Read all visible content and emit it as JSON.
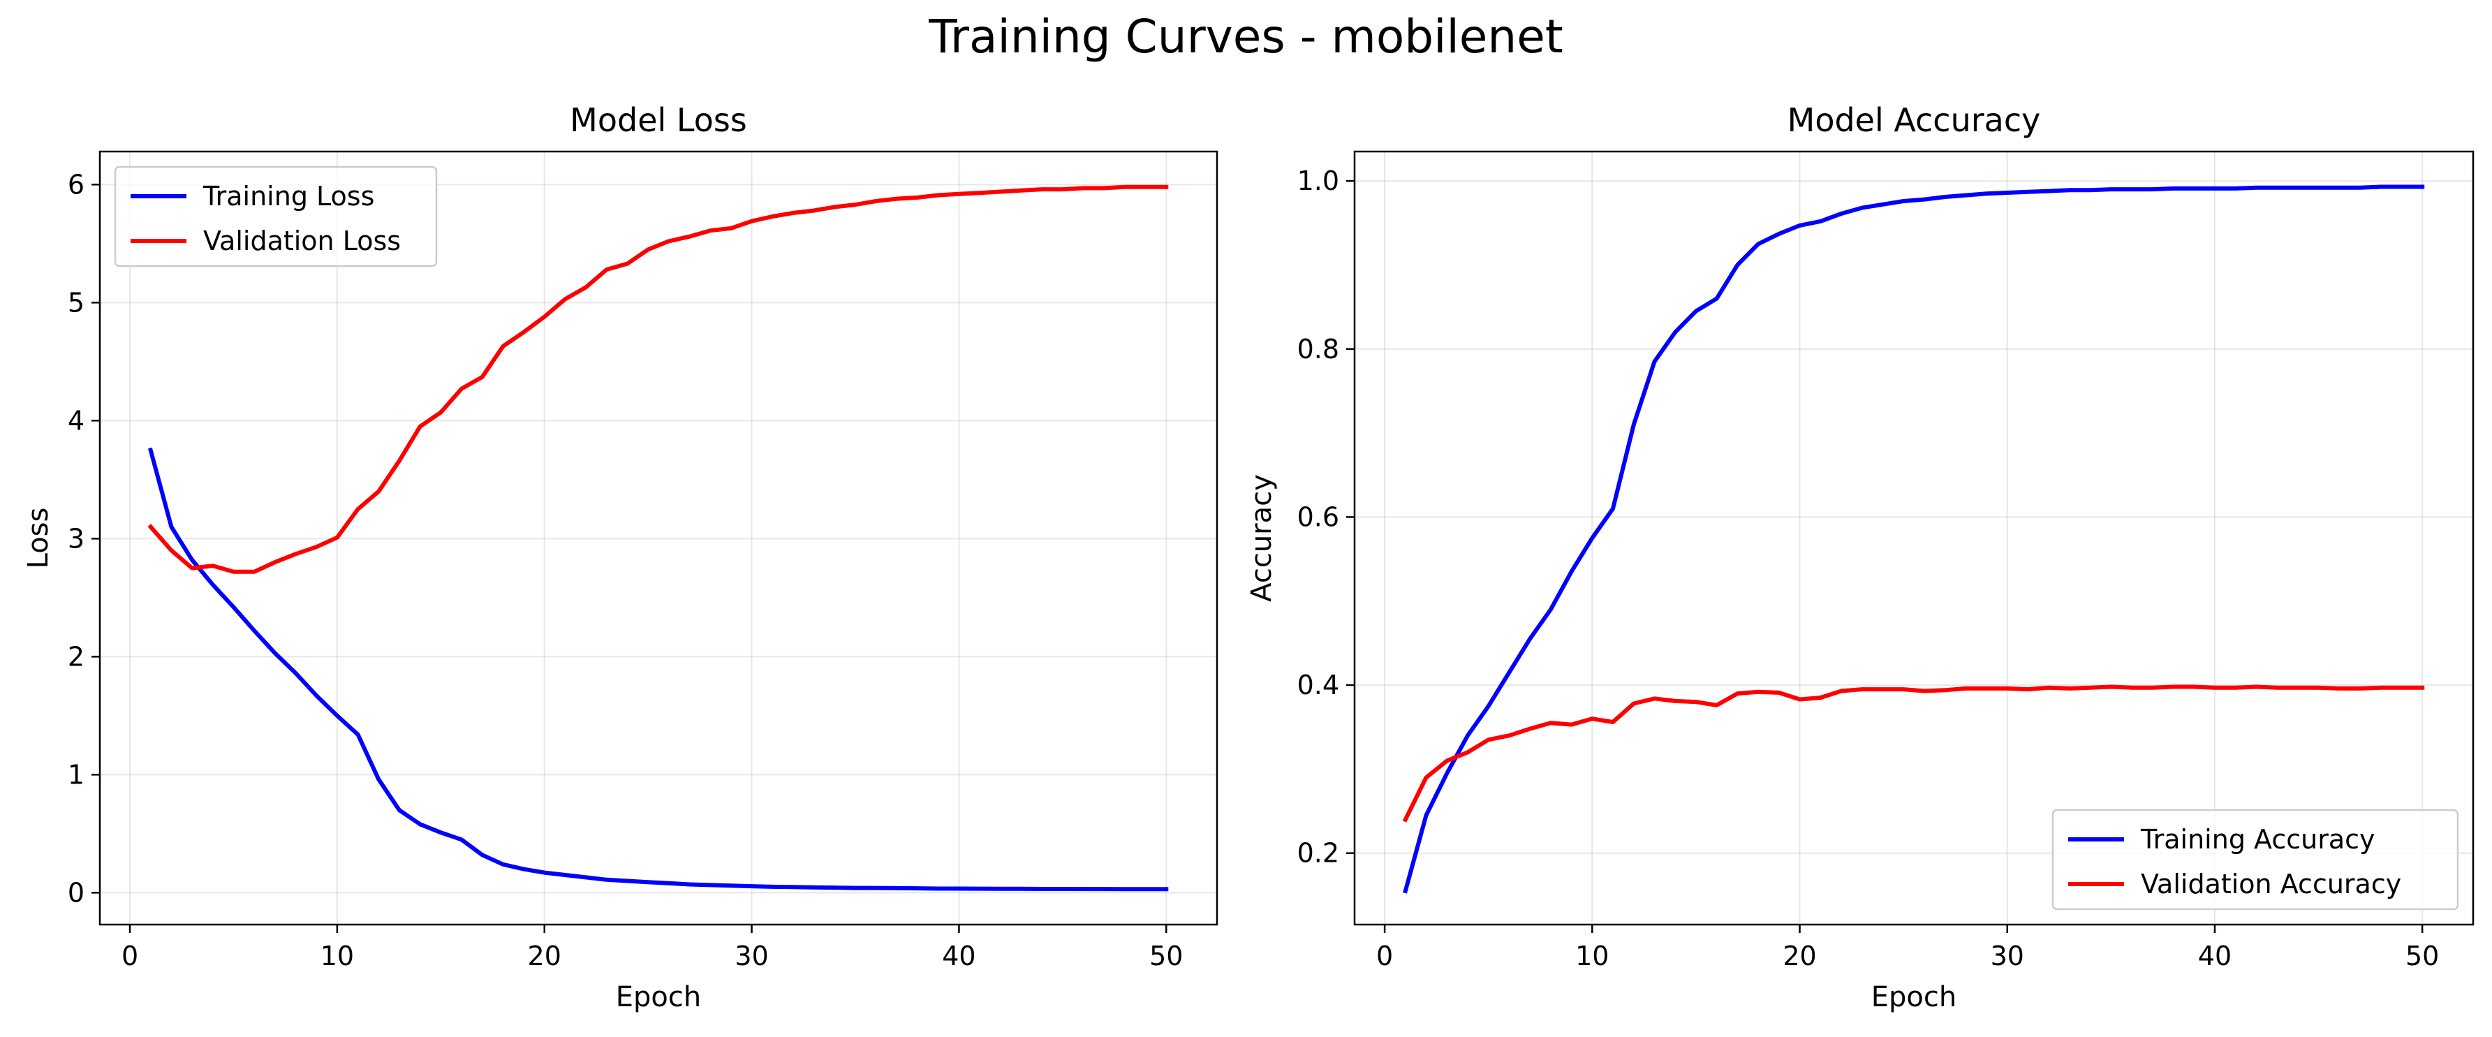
{
  "figure": {
    "title": "Training Curves - mobilenet"
  },
  "colors": {
    "train": "#0000ff",
    "val": "#ff0000",
    "grid": "#b0b0b0",
    "axis": "#000000"
  },
  "chart_data": [
    {
      "type": "line",
      "title": "Model Loss",
      "xlabel": "Epoch",
      "ylabel": "Loss",
      "xlim": [
        -1.45,
        52.45
      ],
      "ylim": [
        -0.27,
        6.28
      ],
      "xticks": [
        0,
        10,
        20,
        30,
        40,
        50
      ],
      "yticks": [
        0,
        1,
        2,
        3,
        4,
        5,
        6
      ],
      "ytick_labels": [
        "0",
        "1",
        "2",
        "3",
        "4",
        "5",
        "6"
      ],
      "grid": true,
      "legend": "top-left",
      "x": [
        1,
        2,
        3,
        4,
        5,
        6,
        7,
        8,
        9,
        10,
        11,
        12,
        13,
        14,
        15,
        16,
        17,
        18,
        19,
        20,
        21,
        22,
        23,
        24,
        25,
        26,
        27,
        28,
        29,
        30,
        31,
        32,
        33,
        34,
        35,
        36,
        37,
        38,
        39,
        40,
        41,
        42,
        43,
        44,
        45,
        46,
        47,
        48,
        49,
        50
      ],
      "series": [
        {
          "name": "Training Loss",
          "color": "#0000ff",
          "values": [
            3.75,
            3.1,
            2.82,
            2.61,
            2.42,
            2.22,
            2.03,
            1.86,
            1.67,
            1.5,
            1.34,
            0.96,
            0.7,
            0.58,
            0.51,
            0.45,
            0.32,
            0.24,
            0.2,
            0.17,
            0.15,
            0.13,
            0.11,
            0.1,
            0.09,
            0.08,
            0.07,
            0.065,
            0.06,
            0.055,
            0.05,
            0.048,
            0.045,
            0.043,
            0.04,
            0.04,
            0.038,
            0.037,
            0.035,
            0.035,
            0.034,
            0.033,
            0.033,
            0.032,
            0.032,
            0.031,
            0.031,
            0.03,
            0.03,
            0.03
          ]
        },
        {
          "name": "Validation Loss",
          "color": "#ff0000",
          "values": [
            3.1,
            2.9,
            2.75,
            2.77,
            2.72,
            2.72,
            2.8,
            2.87,
            2.93,
            3.01,
            3.25,
            3.4,
            3.66,
            3.95,
            4.07,
            4.27,
            4.37,
            4.63,
            4.75,
            4.88,
            5.03,
            5.13,
            5.28,
            5.33,
            5.45,
            5.52,
            5.56,
            5.61,
            5.63,
            5.69,
            5.73,
            5.76,
            5.78,
            5.81,
            5.83,
            5.86,
            5.88,
            5.89,
            5.91,
            5.92,
            5.93,
            5.94,
            5.95,
            5.96,
            5.96,
            5.97,
            5.97,
            5.98,
            5.98,
            5.98
          ]
        }
      ]
    },
    {
      "type": "line",
      "title": "Model Accuracy",
      "xlabel": "Epoch",
      "ylabel": "Accuracy",
      "xlim": [
        -1.45,
        52.45
      ],
      "ylim": [
        0.115,
        1.035
      ],
      "xticks": [
        0,
        10,
        20,
        30,
        40,
        50
      ],
      "yticks": [
        0.2,
        0.4,
        0.6,
        0.8,
        1.0
      ],
      "ytick_labels": [
        "0.2",
        "0.4",
        "0.6",
        "0.8",
        "1.0"
      ],
      "grid": true,
      "legend": "bottom-right",
      "x": [
        1,
        2,
        3,
        4,
        5,
        6,
        7,
        8,
        9,
        10,
        11,
        12,
        13,
        14,
        15,
        16,
        17,
        18,
        19,
        20,
        21,
        22,
        23,
        24,
        25,
        26,
        27,
        28,
        29,
        30,
        31,
        32,
        33,
        34,
        35,
        36,
        37,
        38,
        39,
        40,
        41,
        42,
        43,
        44,
        45,
        46,
        47,
        48,
        49,
        50
      ],
      "series": [
        {
          "name": "Training Accuracy",
          "color": "#0000ff",
          "values": [
            0.155,
            0.245,
            0.295,
            0.34,
            0.375,
            0.415,
            0.455,
            0.49,
            0.535,
            0.575,
            0.61,
            0.71,
            0.785,
            0.82,
            0.845,
            0.86,
            0.9,
            0.925,
            0.937,
            0.947,
            0.952,
            0.961,
            0.968,
            0.972,
            0.976,
            0.978,
            0.981,
            0.983,
            0.985,
            0.986,
            0.987,
            0.988,
            0.989,
            0.989,
            0.99,
            0.99,
            0.99,
            0.991,
            0.991,
            0.991,
            0.991,
            0.992,
            0.992,
            0.992,
            0.992,
            0.992,
            0.992,
            0.993,
            0.993,
            0.993
          ]
        },
        {
          "name": "Validation Accuracy",
          "color": "#ff0000",
          "values": [
            0.24,
            0.29,
            0.31,
            0.32,
            0.335,
            0.34,
            0.348,
            0.355,
            0.353,
            0.36,
            0.356,
            0.378,
            0.384,
            0.381,
            0.38,
            0.376,
            0.39,
            0.392,
            0.391,
            0.383,
            0.385,
            0.393,
            0.395,
            0.395,
            0.395,
            0.393,
            0.394,
            0.396,
            0.396,
            0.396,
            0.395,
            0.397,
            0.396,
            0.397,
            0.398,
            0.397,
            0.397,
            0.398,
            0.398,
            0.397,
            0.397,
            0.398,
            0.397,
            0.397,
            0.397,
            0.396,
            0.396,
            0.397,
            0.397,
            0.397
          ]
        }
      ]
    }
  ]
}
